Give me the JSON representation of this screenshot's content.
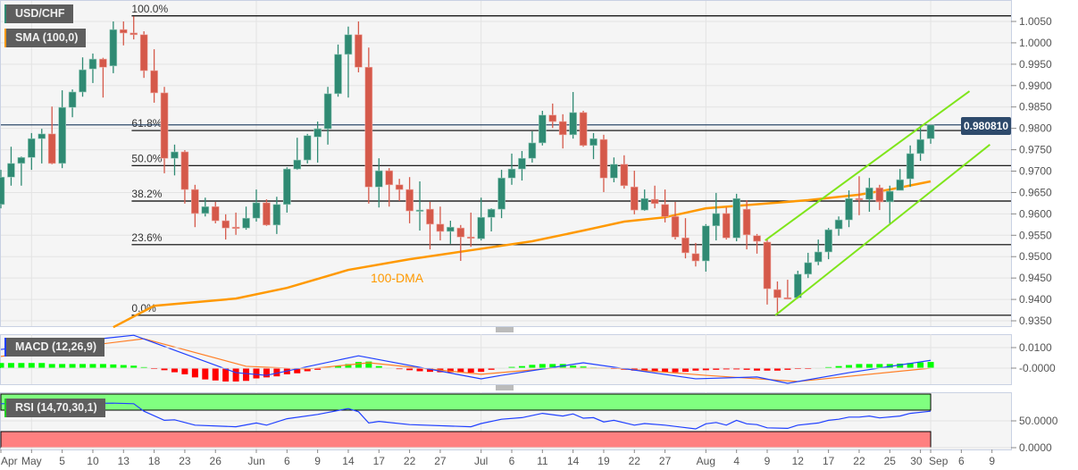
{
  "legend": {
    "symbol": "USD/CHF",
    "sma": "SMA (100,0)",
    "macd": "MACD (12,26,9)",
    "rsi": "RSI (14,70,30,1)"
  },
  "current_price": "0.980810",
  "colors": {
    "bull": "#2f8a73",
    "bear": "#d5594a",
    "sma": "#ff9900",
    "channel": "#7fe51b",
    "price_line": "#2e4a6b",
    "macd": "#1f3fff",
    "signal": "#ff7f27",
    "hist_pos": "#00ff00",
    "hist_neg": "#ff0000",
    "rsi": "#2040ff",
    "rsi_overbought": "#80ff80",
    "rsi_oversold": "#ff8080"
  },
  "chart_data": [
    {
      "type": "candlestick",
      "ylim": [
        0.935,
        1.005
      ],
      "y_ticks": [
        "1.0050",
        "1.0000",
        "0.9950",
        "0.9900",
        "0.9850",
        "0.9800",
        "0.9750",
        "0.9700",
        "0.9650",
        "0.9600",
        "0.9550",
        "0.9500",
        "0.9450",
        "0.9400",
        "0.9350"
      ],
      "x_ticks": [
        {
          "label": "Apr",
          "bar": 0
        },
        {
          "label": "May",
          "bar": 3
        },
        {
          "label": "5",
          "bar": 6
        },
        {
          "label": "10",
          "bar": 9
        },
        {
          "label": "13",
          "bar": 12
        },
        {
          "label": "18",
          "bar": 15
        },
        {
          "label": "23",
          "bar": 18
        },
        {
          "label": "26",
          "bar": 21
        },
        {
          "label": "Jun",
          "bar": 25
        },
        {
          "label": "6",
          "bar": 28
        },
        {
          "label": "9",
          "bar": 31
        },
        {
          "label": "14",
          "bar": 34
        },
        {
          "label": "17",
          "bar": 37
        },
        {
          "label": "22",
          "bar": 40
        },
        {
          "label": "27",
          "bar": 43
        },
        {
          "label": "Jul",
          "bar": 47
        },
        {
          "label": "6",
          "bar": 50
        },
        {
          "label": "11",
          "bar": 53
        },
        {
          "label": "14",
          "bar": 56
        },
        {
          "label": "19",
          "bar": 59
        },
        {
          "label": "22",
          "bar": 62
        },
        {
          "label": "27",
          "bar": 65
        },
        {
          "label": "Aug",
          "bar": 69
        },
        {
          "label": "4",
          "bar": 72
        },
        {
          "label": "9",
          "bar": 75
        },
        {
          "label": "12",
          "bar": 78
        },
        {
          "label": "17",
          "bar": 81
        },
        {
          "label": "22",
          "bar": 84
        },
        {
          "label": "25",
          "bar": 87
        },
        {
          "label": "30",
          "bar": 90
        },
        {
          "label": "Sep",
          "bar": 91
        },
        {
          "label": "6",
          "bar": 94
        },
        {
          "label": "9",
          "bar": 97
        }
      ],
      "month_bars": [
        3,
        25,
        47,
        69,
        91
      ],
      "ohlc": [
        [
          0.9622,
          0.9703,
          0.9613,
          0.9686
        ],
        [
          0.9686,
          0.9757,
          0.9666,
          0.9718
        ],
        [
          0.9718,
          0.9734,
          0.9666,
          0.9732
        ],
        [
          0.9732,
          0.9789,
          0.9703,
          0.9776
        ],
        [
          0.9776,
          0.9799,
          0.9718,
          0.9787
        ],
        [
          0.9787,
          0.9851,
          0.9716,
          0.9718
        ],
        [
          0.9718,
          0.9889,
          0.9707,
          0.9849
        ],
        [
          0.9849,
          0.9891,
          0.9826,
          0.9885
        ],
        [
          0.9885,
          0.9966,
          0.9874,
          0.9937
        ],
        [
          0.9939,
          0.9975,
          0.9906,
          0.9962
        ],
        [
          0.9962,
          0.9965,
          0.9872,
          0.9943
        ],
        [
          0.9946,
          1.005,
          0.9929,
          1.0031
        ],
        [
          1.0031,
          1.005,
          0.9994,
          1.0023
        ],
        [
          1.0023,
          1.0062,
          1.0008,
          1.0019
        ],
        [
          1.0019,
          1.0027,
          0.9918,
          0.9935
        ],
        [
          0.9935,
          0.9985,
          0.986,
          0.9883
        ],
        [
          0.9883,
          0.9897,
          0.9695,
          0.973
        ],
        [
          0.973,
          0.9762,
          0.969,
          0.9745
        ],
        [
          0.9745,
          0.9749,
          0.9624,
          0.9657
        ],
        [
          0.9657,
          0.9668,
          0.9569,
          0.9601
        ],
        [
          0.9601,
          0.9638,
          0.9594,
          0.9617
        ],
        [
          0.9617,
          0.9628,
          0.9578,
          0.9584
        ],
        [
          0.9584,
          0.9599,
          0.954,
          0.9567
        ],
        [
          0.9569,
          0.9603,
          0.9551,
          0.9567
        ],
        [
          0.9567,
          0.9617,
          0.9563,
          0.959
        ],
        [
          0.959,
          0.9657,
          0.9582,
          0.9626
        ],
        [
          0.9626,
          0.9634,
          0.9572,
          0.9574
        ],
        [
          0.9574,
          0.964,
          0.9553,
          0.9622
        ],
        [
          0.9622,
          0.9709,
          0.9603,
          0.9705
        ],
        [
          0.9705,
          0.9778,
          0.9703,
          0.9726
        ],
        [
          0.9726,
          0.9787,
          0.9718,
          0.9783
        ],
        [
          0.978,
          0.9816,
          0.972,
          0.9799
        ],
        [
          0.9799,
          0.9897,
          0.9762,
          0.9881
        ],
        [
          0.9881,
          0.9996,
          0.9874,
          0.9973
        ],
        [
          0.9973,
          1.0038,
          0.9872,
          1.0019
        ],
        [
          1.0019,
          1.005,
          0.9931,
          0.9943
        ],
        [
          0.9943,
          0.9989,
          0.9624,
          0.9663
        ],
        [
          0.9663,
          0.973,
          0.9615,
          0.9701
        ],
        [
          0.9701,
          0.9707,
          0.9617,
          0.9668
        ],
        [
          0.9668,
          0.9682,
          0.963,
          0.9657
        ],
        [
          0.9657,
          0.9686,
          0.9578,
          0.9607
        ],
        [
          0.9607,
          0.9676,
          0.9561,
          0.9609
        ],
        [
          0.9611,
          0.9628,
          0.9517,
          0.9576
        ],
        [
          0.9576,
          0.9617,
          0.9538,
          0.9559
        ],
        [
          0.9559,
          0.9584,
          0.953,
          0.9569
        ],
        [
          0.9567,
          0.9574,
          0.949,
          0.9546
        ],
        [
          0.9546,
          0.9603,
          0.9523,
          0.9544
        ],
        [
          0.9542,
          0.9638,
          0.9538,
          0.9592
        ],
        [
          0.9592,
          0.9613,
          0.9559,
          0.9611
        ],
        [
          0.9611,
          0.9703,
          0.959,
          0.9684
        ],
        [
          0.9684,
          0.9741,
          0.9668,
          0.9705
        ],
        [
          0.9705,
          0.9747,
          0.9678,
          0.973
        ],
        [
          0.973,
          0.9793,
          0.972,
          0.9766
        ],
        [
          0.9766,
          0.9841,
          0.976,
          0.9831
        ],
        [
          0.9831,
          0.9858,
          0.9801,
          0.9816
        ],
        [
          0.9816,
          0.9833,
          0.9753,
          0.9785
        ],
        [
          0.9785,
          0.9885,
          0.9776,
          0.9837
        ],
        [
          0.9837,
          0.9841,
          0.9757,
          0.976
        ],
        [
          0.976,
          0.9789,
          0.9728,
          0.9776
        ],
        [
          0.9774,
          0.9785,
          0.9651,
          0.9684
        ],
        [
          0.9684,
          0.9732,
          0.9674,
          0.9716
        ],
        [
          0.9716,
          0.9737,
          0.9659,
          0.9666
        ],
        [
          0.9663,
          0.9701,
          0.9599,
          0.9609
        ],
        [
          0.9609,
          0.9657,
          0.9607,
          0.9636
        ],
        [
          0.9634,
          0.9666,
          0.9613,
          0.9624
        ],
        [
          0.9622,
          0.9657,
          0.958,
          0.9594
        ],
        [
          0.9594,
          0.9628,
          0.954,
          0.9546
        ],
        [
          0.9544,
          0.959,
          0.9496,
          0.9509
        ],
        [
          0.9507,
          0.9532,
          0.9477,
          0.949
        ],
        [
          0.949,
          0.9576,
          0.9465,
          0.9572
        ],
        [
          0.9572,
          0.9649,
          0.9538,
          0.9601
        ],
        [
          0.9601,
          0.9615,
          0.954,
          0.9544
        ],
        [
          0.9544,
          0.9647,
          0.9536,
          0.9636
        ],
        [
          0.9611,
          0.9632,
          0.9517,
          0.9551
        ],
        [
          0.9549,
          0.9553,
          0.9507,
          0.9536
        ],
        [
          0.9534,
          0.9542,
          0.9388,
          0.9425
        ],
        [
          0.9423,
          0.9442,
          0.9365,
          0.9404
        ],
        [
          0.9404,
          0.9446,
          0.9402,
          0.9402
        ],
        [
          0.9404,
          0.9467,
          0.9402,
          0.9459
        ],
        [
          0.9459,
          0.9509,
          0.945,
          0.9486
        ],
        [
          0.9488,
          0.954,
          0.948,
          0.9511
        ],
        [
          0.9511,
          0.9567,
          0.9494,
          0.9563
        ],
        [
          0.9565,
          0.9594,
          0.9549,
          0.9586
        ],
        [
          0.9586,
          0.9655,
          0.9569,
          0.9636
        ],
        [
          0.9636,
          0.9688,
          0.9597,
          0.9634
        ],
        [
          0.9634,
          0.9684,
          0.9605,
          0.9661
        ],
        [
          0.9661,
          0.9668,
          0.9609,
          0.9628
        ],
        [
          0.9628,
          0.9666,
          0.9574,
          0.9653
        ],
        [
          0.9655,
          0.9705,
          0.9655,
          0.968
        ],
        [
          0.9682,
          0.976,
          0.9663,
          0.9741
        ],
        [
          0.9741,
          0.9806,
          0.9724,
          0.9774
        ],
        [
          0.9776,
          0.9806,
          0.9764,
          0.9808
        ]
      ],
      "sma_100": [
        [
          11,
          0.9335
        ],
        [
          15,
          0.9385
        ],
        [
          23,
          0.9402
        ],
        [
          28,
          0.9427
        ],
        [
          34,
          0.9469
        ],
        [
          40,
          0.9494
        ],
        [
          46,
          0.9515
        ],
        [
          52,
          0.9536
        ],
        [
          57,
          0.9561
        ],
        [
          61,
          0.9582
        ],
        [
          65,
          0.9592
        ],
        [
          69,
          0.9613
        ],
        [
          79,
          0.9632
        ],
        [
          84,
          0.9645
        ],
        [
          87,
          0.9657
        ],
        [
          91,
          0.9676
        ]
      ],
      "sma_label": "100-DMA",
      "channel_upper": [
        [
          74.8,
          0.9538
        ],
        [
          94.8,
          0.9887
        ]
      ],
      "channel_lower": [
        [
          75.8,
          0.9363
        ],
        [
          96.8,
          0.9762
        ]
      ],
      "fibonacci": [
        {
          "label": "100.0%",
          "price": 1.0063
        },
        {
          "label": "61.8%",
          "price": 0.9795
        },
        {
          "label": "50.0%",
          "price": 0.9713
        },
        {
          "label": "38.2%",
          "price": 0.963
        },
        {
          "label": "23.6%",
          "price": 0.9528
        },
        {
          "label": "0.0%",
          "price": 0.9363
        }
      ],
      "fib_start_bar": 12.8
    },
    {
      "type": "line",
      "name": "MACD (12,26,9)",
      "y_ticks": [
        {
          "label": "0.0100",
          "value": 0.01
        },
        {
          "label": "-0.0000",
          "value": 0
        }
      ],
      "macd": [
        [
          0,
          0.0091
        ],
        [
          13,
          0.016
        ],
        [
          23,
          -0.0022
        ],
        [
          26,
          -0.0035
        ],
        [
          35,
          0.006
        ],
        [
          47,
          -0.0052
        ],
        [
          49,
          -0.0035
        ],
        [
          57,
          0.0026
        ],
        [
          68,
          -0.0052
        ],
        [
          74,
          -0.0043
        ],
        [
          77,
          -0.0074
        ],
        [
          83,
          -0.0022
        ],
        [
          91,
          0.0038
        ]
      ],
      "signal": [
        [
          0,
          0.0057
        ],
        [
          14,
          0.0143
        ],
        [
          24,
          0.0009
        ],
        [
          30,
          -0.0004
        ],
        [
          36,
          0.0026
        ],
        [
          47,
          -0.003
        ],
        [
          54,
          0
        ],
        [
          60,
          0
        ],
        [
          69,
          -0.0035
        ],
        [
          78,
          -0.0065
        ],
        [
          91,
          0.0
        ]
      ],
      "histogram": [
        0.0025,
        0.0025,
        0.0025,
        0.0025,
        0.0025,
        0.002,
        0.002,
        0.002,
        0.002,
        0.002,
        0.002,
        0.0018,
        0.0015,
        0.0012,
        0.0005,
        -0.0002,
        -0.001,
        -0.002,
        -0.003,
        -0.0045,
        -0.0055,
        -0.006,
        -0.0065,
        -0.0065,
        -0.0062,
        -0.005,
        -0.0045,
        -0.004,
        -0.003,
        -0.0025,
        -0.0015,
        -0.0008,
        0.0003,
        0.001,
        0.002,
        0.003,
        0.0032,
        0.001,
        0.0002,
        -0.0005,
        -0.001,
        -0.0015,
        -0.0018,
        -0.002,
        -0.002,
        -0.0022,
        -0.0022,
        -0.0018,
        -0.0008,
        0.0002,
        0.0006,
        0.001,
        0.0016,
        0.002,
        0.002,
        0.002,
        0.0012,
        0.0008,
        0.0003,
        0.0002,
        -0.0003,
        -0.0008,
        -0.0012,
        -0.0015,
        -0.0018,
        -0.002,
        -0.002,
        -0.0018,
        -0.0012,
        -0.001,
        -0.0008,
        -0.0006,
        -0.0006,
        -0.0008,
        -0.0012,
        -0.0012,
        -0.0012,
        -0.0008,
        -0.0004,
        -0.0002,
        0.0002,
        0.0005,
        0.001,
        0.0015,
        0.002,
        0.002,
        0.002,
        0.002,
        0.0022,
        0.0025,
        0.0028,
        0.003
      ]
    },
    {
      "type": "line",
      "name": "RSI (14,70,30,1)",
      "ylim": [
        0,
        100
      ],
      "overbought": 70,
      "oversold": 30,
      "y_ticks": [
        {
          "label": "50.0000",
          "value": 50
        },
        {
          "label": "0.0000",
          "value": 0
        }
      ],
      "rsi": [
        [
          0,
          82
        ],
        [
          11,
          83
        ],
        [
          13,
          82
        ],
        [
          14,
          68
        ],
        [
          16,
          51
        ],
        [
          17,
          52
        ],
        [
          19,
          42
        ],
        [
          23,
          39
        ],
        [
          25,
          46
        ],
        [
          26,
          42
        ],
        [
          28,
          54
        ],
        [
          31,
          62
        ],
        [
          34,
          73
        ],
        [
          35,
          67
        ],
        [
          36,
          46
        ],
        [
          37,
          49
        ],
        [
          40,
          43
        ],
        [
          46,
          39
        ],
        [
          47,
          45
        ],
        [
          49,
          53
        ],
        [
          51,
          56
        ],
        [
          53,
          64
        ],
        [
          55,
          59
        ],
        [
          56,
          63
        ],
        [
          57,
          55
        ],
        [
          58,
          56
        ],
        [
          59,
          48
        ],
        [
          60,
          51
        ],
        [
          62,
          42
        ],
        [
          63,
          45
        ],
        [
          65,
          42
        ],
        [
          68,
          35
        ],
        [
          69,
          44.5
        ],
        [
          70,
          47
        ],
        [
          71,
          42
        ],
        [
          72,
          51
        ],
        [
          73,
          44.5
        ],
        [
          74,
          43
        ],
        [
          75,
          37
        ],
        [
          77,
          36
        ],
        [
          78,
          42
        ],
        [
          80,
          46
        ],
        [
          81,
          51
        ],
        [
          82,
          53
        ],
        [
          83,
          57
        ],
        [
          84,
          57
        ],
        [
          85,
          59
        ],
        [
          86,
          55.5
        ],
        [
          88,
          59
        ],
        [
          89,
          64
        ],
        [
          91,
          68
        ]
      ]
    }
  ]
}
